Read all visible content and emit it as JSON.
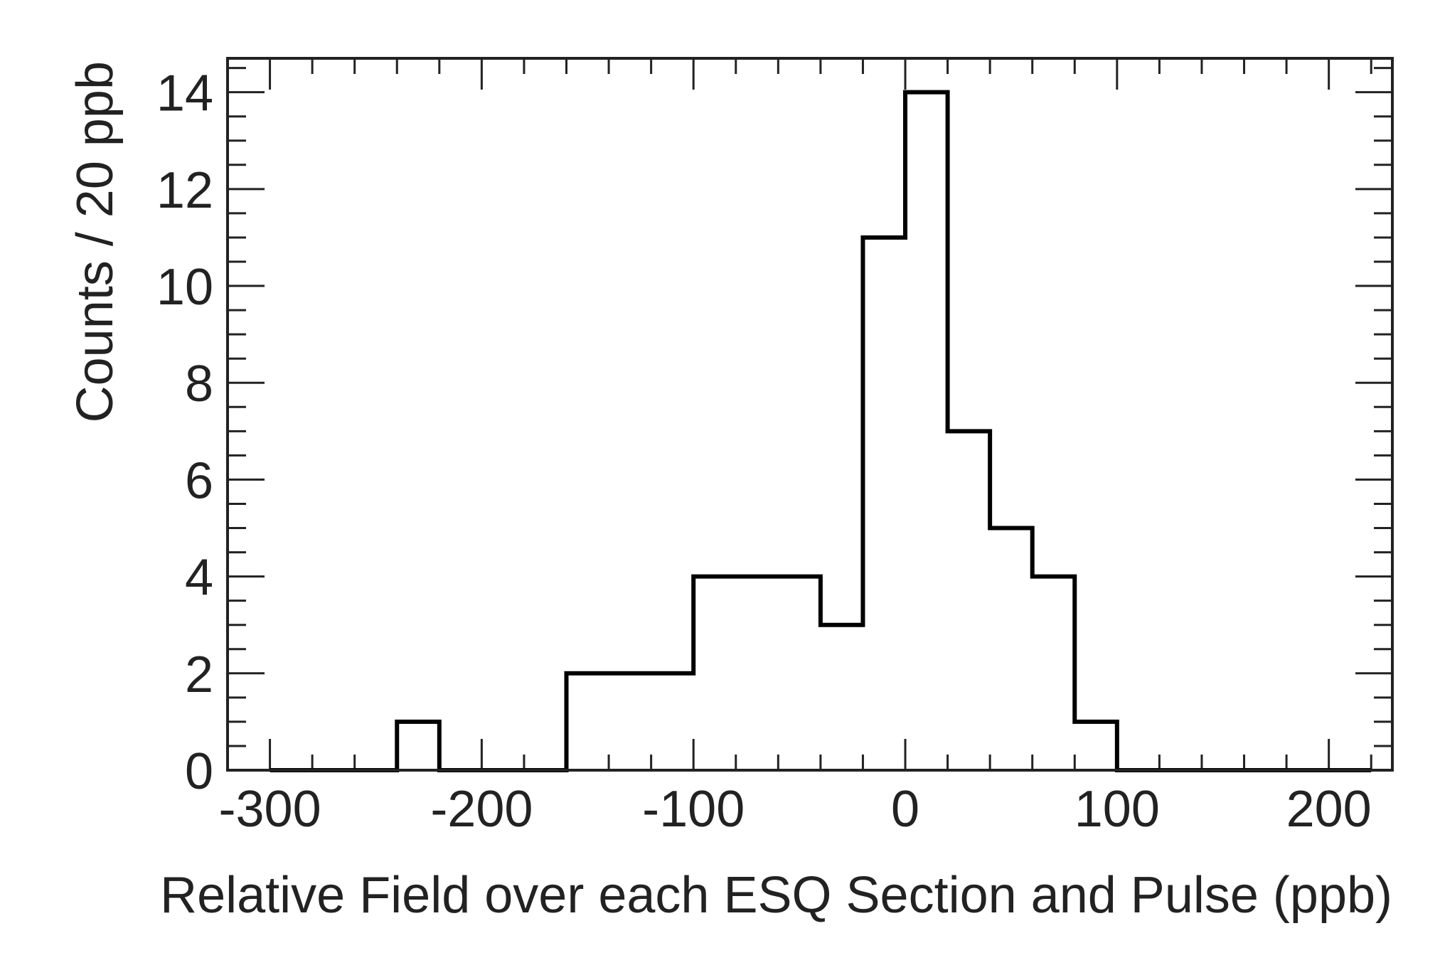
{
  "chart_data": {
    "type": "bar",
    "histogram": true,
    "bin_width": 20,
    "bin_edges_start": -300,
    "values": [
      0,
      0,
      0,
      1,
      0,
      0,
      0,
      2,
      2,
      2,
      4,
      4,
      4,
      3,
      11,
      14,
      7,
      5,
      4,
      1,
      0,
      0,
      0,
      0,
      0,
      0
    ],
    "xlabel": "Relative Field over each ESQ Section and Pulse  (ppb)",
    "ylabel": "Counts / 20 ppb",
    "xlim": [
      -320,
      230
    ],
    "ylim": [
      0,
      14.7
    ],
    "x_ticks": [
      -300,
      -200,
      -100,
      0,
      100,
      200
    ],
    "x_tick_labels": [
      "-300",
      "-200",
      "-100",
      "0",
      "100",
      "200"
    ],
    "y_ticks": [
      0,
      2,
      4,
      6,
      8,
      10,
      12,
      14
    ],
    "y_tick_labels": [
      "0",
      "2",
      "4",
      "6",
      "8",
      "10",
      "12",
      "14"
    ],
    "line_color": "#000000",
    "text_color": "#222222",
    "grid": false
  }
}
